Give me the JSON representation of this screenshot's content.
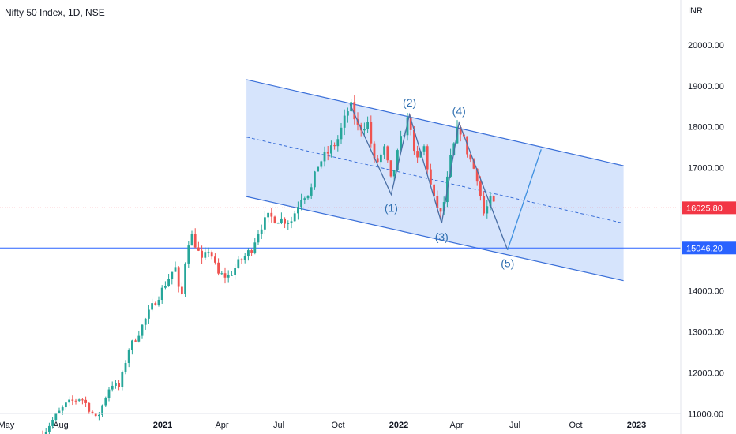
{
  "header": {
    "title": "Nifty 50 Index, 1D, NSE",
    "currency": "INR"
  },
  "colors": {
    "up": "#26a69a",
    "down": "#ef5350",
    "channel_fill": "#cfdffb",
    "channel_line": "#3a6fd8",
    "wave_line": "#4a6fa5",
    "projection_line": "#3d8fe0",
    "current_price": "#f23645",
    "support": "#2962ff"
  },
  "chart_data": {
    "type": "candlestick",
    "ylim": [
      10800,
      20900
    ],
    "y_ticks": [
      {
        "value": 11000,
        "label": "11000.00"
      },
      {
        "value": 12000,
        "label": "12000.00"
      },
      {
        "value": 13000,
        "label": "13000.00"
      },
      {
        "value": 14000,
        "label": "14000.00"
      },
      {
        "value": 15000,
        "label": "15000.00"
      },
      {
        "value": 16000,
        "label": "16000.00"
      },
      {
        "value": 17000,
        "label": "17000.00"
      },
      {
        "value": 18000,
        "label": "18000.00"
      },
      {
        "value": 19000,
        "label": "19000.00"
      },
      {
        "value": 20000,
        "label": "20000.00"
      }
    ],
    "x_ticks": [
      {
        "date": "2020-05",
        "label": "May",
        "bold": false
      },
      {
        "date": "2020-08",
        "label": "Aug",
        "bold": false
      },
      {
        "date": "2021-01",
        "label": "2021",
        "bold": true
      },
      {
        "date": "2021-04",
        "label": "Apr",
        "bold": false
      },
      {
        "date": "2021-07",
        "label": "Jul",
        "bold": false
      },
      {
        "date": "2021-10",
        "label": "Oct",
        "bold": false
      },
      {
        "date": "2022-01",
        "label": "2022",
        "bold": true
      },
      {
        "date": "2022-04",
        "label": "Apr",
        "bold": false
      },
      {
        "date": "2022-07",
        "label": "Jul",
        "bold": false
      },
      {
        "date": "2022-10",
        "label": "Oct",
        "bold": false
      },
      {
        "date": "2023-01",
        "label": "2023",
        "bold": true
      }
    ],
    "price_path": [
      [
        "2020-07-01",
        10500
      ],
      [
        "2020-07-20",
        10900
      ],
      [
        "2020-08-10",
        11250
      ],
      [
        "2020-08-31",
        11400
      ],
      [
        "2020-09-08",
        11250
      ],
      [
        "2020-09-24",
        10850
      ],
      [
        "2020-10-15",
        11750
      ],
      [
        "2020-10-28",
        11650
      ],
      [
        "2020-11-10",
        12550
      ],
      [
        "2020-11-25",
        12950
      ],
      [
        "2020-12-15",
        13600
      ],
      [
        "2021-01-01",
        14050
      ],
      [
        "2021-01-20",
        14600
      ],
      [
        "2021-01-29",
        13650
      ],
      [
        "2021-02-08",
        15150
      ],
      [
        "2021-02-16",
        15350
      ],
      [
        "2021-03-01",
        14700
      ],
      [
        "2021-03-12",
        15050
      ],
      [
        "2021-03-25",
        14400
      ],
      [
        "2021-04-12",
        14350
      ],
      [
        "2021-04-26",
        14650
      ],
      [
        "2021-05-17",
        15000
      ],
      [
        "2021-06-01",
        15550
      ],
      [
        "2021-06-15",
        15800
      ],
      [
        "2021-07-01",
        15750
      ],
      [
        "2021-07-20",
        15700
      ],
      [
        "2021-08-05",
        16300
      ],
      [
        "2021-08-20",
        16450
      ],
      [
        "2021-09-01",
        17100
      ],
      [
        "2021-09-15",
        17350
      ],
      [
        "2021-09-30",
        17650
      ],
      [
        "2021-10-19",
        18550
      ],
      [
        "2021-11-01",
        17950
      ],
      [
        "2021-11-15",
        18100
      ],
      [
        "2021-11-26",
        17050
      ],
      [
        "2021-12-10",
        17450
      ],
      [
        "2021-12-20",
        16650
      ],
      [
        "2022-01-03",
        17600
      ],
      [
        "2022-01-18",
        18300
      ],
      [
        "2022-01-27",
        17050
      ],
      [
        "2022-02-10",
        17550
      ],
      [
        "2022-02-24",
        16300
      ],
      [
        "2022-03-08",
        15800
      ],
      [
        "2022-03-22",
        17200
      ],
      [
        "2022-04-05",
        18050
      ],
      [
        "2022-04-20",
        17300
      ],
      [
        "2022-05-05",
        16700
      ],
      [
        "2022-05-12",
        15850
      ],
      [
        "2022-05-24",
        16200
      ],
      [
        "2022-06-01",
        16050
      ]
    ],
    "channel": {
      "upper": [
        {
          "date": "2021-05-10",
          "value": 19150
        },
        {
          "date": "2022-12-12",
          "value": 17050
        }
      ],
      "lower": [
        {
          "date": "2021-05-10",
          "value": 16300
        },
        {
          "date": "2022-12-12",
          "value": 14250
        }
      ],
      "midline": [
        {
          "date": "2021-05-10",
          "value": 17750
        },
        {
          "date": "2022-12-12",
          "value": 15650
        }
      ]
    },
    "waves": [
      {
        "date": "2021-10-19",
        "value": 18550,
        "label": ""
      },
      {
        "date": "2021-12-20",
        "value": 16350,
        "label": "(1)"
      },
      {
        "date": "2022-01-18",
        "value": 18300,
        "label": "(2)"
      },
      {
        "date": "2022-03-08",
        "value": 15650,
        "label": "(3)"
      },
      {
        "date": "2022-04-05",
        "value": 18100,
        "label": "(4)"
      },
      {
        "date": "2022-06-20",
        "value": 15000,
        "label": "(5)"
      }
    ],
    "projection": [
      {
        "date": "2022-06-20",
        "value": 15000
      },
      {
        "date": "2022-08-10",
        "value": 17450
      }
    ],
    "hlines": [
      {
        "value": 16025.8,
        "label": "16025.80",
        "style": "current"
      },
      {
        "value": 15046.2,
        "label": "15046.20",
        "style": "support"
      }
    ]
  }
}
